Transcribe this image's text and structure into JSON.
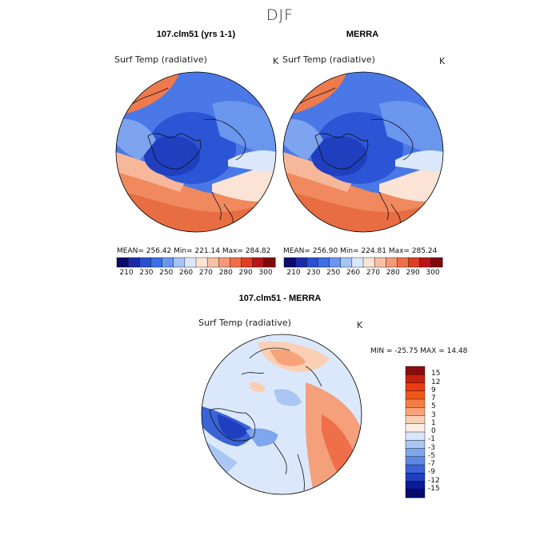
{
  "title": "DJF",
  "panels": [
    {
      "title": "107.clm51 (yrs 1-1)",
      "variable": "Surf Temp (radiative)",
      "units": "K",
      "stats": "MEAN= 256.42   Min= 221.14   Max= 284.82"
    },
    {
      "title": "MERRA",
      "variable": "Surf Temp (radiative)",
      "units": "K",
      "stats": "MEAN= 256.90   Min= 224.81   Max= 285.24"
    },
    {
      "title": "107.clm51 - MERRA",
      "variable": "Surf Temp (radiative)",
      "units": "K",
      "stats": "MIN = -25.75  MAX =  14.48"
    }
  ],
  "colorbar_abs": {
    "colors": [
      "#0b0b6b",
      "#1a2aa8",
      "#2a4fd0",
      "#3f6ee6",
      "#6b96ee",
      "#a6c4f5",
      "#dbe8fb",
      "#fbe4d5",
      "#f7c0a4",
      "#f49a77",
      "#ef6f4a",
      "#dd4024",
      "#b8141a",
      "#7d0a0a"
    ],
    "labels": [
      "210",
      "230",
      "250",
      "260",
      "270",
      "280",
      "290",
      "300"
    ]
  },
  "colorbar_diff": {
    "colors": [
      "#8a0d0d",
      "#c8200f",
      "#e83d12",
      "#f0581a",
      "#f47d46",
      "#f7a27a",
      "#fbcfb3",
      "#fcefe5",
      "#d9e6fa",
      "#aac6f2",
      "#7da6ec",
      "#5d88e6",
      "#3a63d6",
      "#1f3fbf",
      "#0b1a95",
      "#060a6b"
    ],
    "labels": [
      "15",
      "12",
      "9",
      "7",
      "5",
      "3",
      "1",
      "0",
      "-1",
      "-3",
      "-5",
      "-7",
      "-9",
      "-12",
      "-15"
    ]
  }
}
